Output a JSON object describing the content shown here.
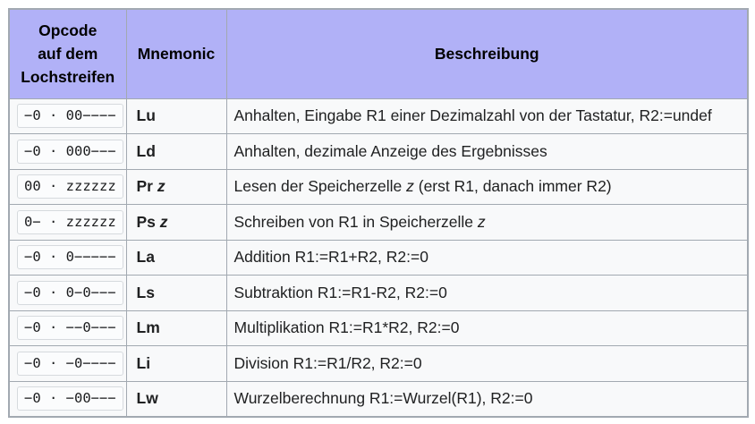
{
  "colors": {
    "header_bg": "#b1b1f7",
    "border": "#a2a9b1",
    "cell_bg": "#f8f9fa",
    "code_bg": "#fbfcfd",
    "code_border": "#d6dade",
    "text": "#202122"
  },
  "table": {
    "header": {
      "opcode_col_lines": [
        "Opcode",
        "auf dem",
        "Lochstreifen"
      ],
      "mnemonic_col": "Mnemonic",
      "description_col": "Beschreibung"
    },
    "rows": [
      {
        "opcode": "−0 · 00−−−−",
        "mnemonic": "Lu",
        "mnemonic_arg": "",
        "desc_pre": "Anhalten, Eingabe R1 einer Dezimalzahl von der Tastatur, R2:=undef",
        "desc_var": "",
        "desc_post": ""
      },
      {
        "opcode": "−0 · 000−−−",
        "mnemonic": "Ld",
        "mnemonic_arg": "",
        "desc_pre": "Anhalten, dezimale Anzeige des Ergebnisses",
        "desc_var": "",
        "desc_post": ""
      },
      {
        "opcode": "00 · zzzzzz",
        "mnemonic": "Pr ",
        "mnemonic_arg": "z",
        "desc_pre": "Lesen der Speicherzelle ",
        "desc_var": "z",
        "desc_post": " (erst R1, danach immer R2)"
      },
      {
        "opcode": "0− · zzzzzz",
        "mnemonic": "Ps ",
        "mnemonic_arg": "z",
        "desc_pre": "Schreiben von R1 in Speicherzelle ",
        "desc_var": "z",
        "desc_post": ""
      },
      {
        "opcode": "−0 · 0−−−−−",
        "mnemonic": "La",
        "mnemonic_arg": "",
        "desc_pre": "Addition R1:=R1+R2, R2:=0",
        "desc_var": "",
        "desc_post": ""
      },
      {
        "opcode": "−0 · 0−0−−−",
        "mnemonic": "Ls",
        "mnemonic_arg": "",
        "desc_pre": "Subtraktion R1:=R1-R2, R2:=0",
        "desc_var": "",
        "desc_post": ""
      },
      {
        "opcode": "−0 · −−0−−−",
        "mnemonic": "Lm",
        "mnemonic_arg": "",
        "desc_pre": "Multiplikation R1:=R1*R2, R2:=0",
        "desc_var": "",
        "desc_post": ""
      },
      {
        "opcode": "−0 · −0−−−−",
        "mnemonic": "Li",
        "mnemonic_arg": "",
        "desc_pre": "Division R1:=R1/R2, R2:=0",
        "desc_var": "",
        "desc_post": ""
      },
      {
        "opcode": "−0 · −00−−−",
        "mnemonic": "Lw",
        "mnemonic_arg": "",
        "desc_pre": "Wurzelberechnung R1:=Wurzel(R1), R2:=0",
        "desc_var": "",
        "desc_post": ""
      }
    ]
  }
}
